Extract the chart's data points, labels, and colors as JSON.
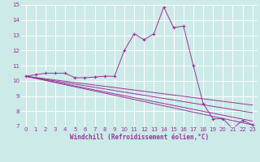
{
  "title": "",
  "xlabel": "Windchill (Refroidissement éolien,°C)",
  "background_color": "#cceae8",
  "grid_color": "#ffffff",
  "line_color": "#993399",
  "xlim": [
    -0.5,
    23.5
  ],
  "ylim": [
    7,
    15
  ],
  "yticks": [
    7,
    8,
    9,
    10,
    11,
    12,
    13,
    14,
    15
  ],
  "xticks": [
    0,
    1,
    2,
    3,
    4,
    5,
    6,
    7,
    8,
    9,
    10,
    11,
    12,
    13,
    14,
    15,
    16,
    17,
    18,
    19,
    20,
    21,
    22,
    23
  ],
  "main_x": [
    0,
    1,
    2,
    3,
    4,
    5,
    6,
    7,
    8,
    9,
    10,
    11,
    12,
    13,
    14,
    15,
    16,
    17,
    18,
    19,
    20,
    21,
    22,
    23
  ],
  "main_y": [
    10.3,
    10.4,
    10.5,
    10.5,
    10.5,
    10.2,
    10.2,
    10.25,
    10.3,
    10.3,
    12.0,
    13.1,
    12.7,
    13.1,
    14.85,
    13.5,
    13.6,
    11.0,
    8.5,
    7.5,
    7.5,
    6.85,
    7.4,
    7.1
  ],
  "diag_lines": [
    {
      "x": [
        0,
        23
      ],
      "y": [
        10.3,
        7.1
      ]
    },
    {
      "x": [
        0,
        23
      ],
      "y": [
        10.3,
        7.35
      ]
    },
    {
      "x": [
        0,
        23
      ],
      "y": [
        10.3,
        7.9
      ]
    },
    {
      "x": [
        0,
        23
      ],
      "y": [
        10.3,
        8.4
      ]
    }
  ],
  "xlabel_fontsize": 5.5,
  "tick_fontsize": 5.0
}
